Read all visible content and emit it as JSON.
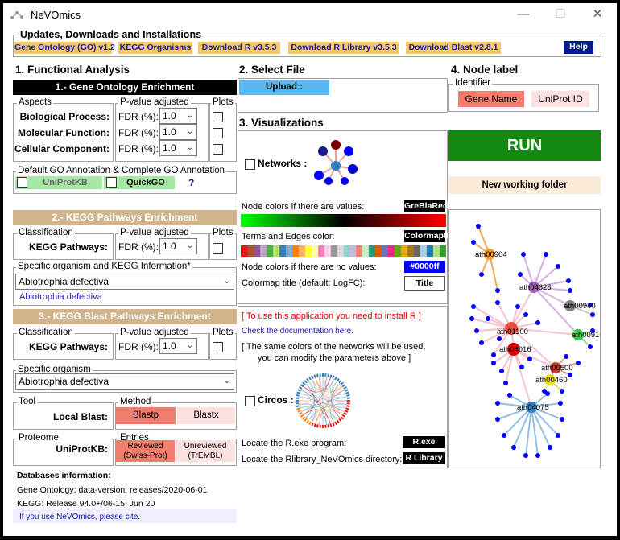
{
  "titlebar": {
    "title": "NeVOmics",
    "icons": [
      "app-logo-icon",
      "minimize-icon",
      "maximize-icon",
      "close-icon"
    ]
  },
  "updates": {
    "legend": "Updates, Downloads and Installations",
    "buttons": [
      "Gene Ontology (GO) v1.2",
      "KEGG Organisms",
      "Download R v3.5.3",
      "Download R Library v3.5.3",
      "Download Blast v2.8.1"
    ],
    "help": "Help"
  },
  "functional": {
    "title": "1. Functional Analysis",
    "go": {
      "bar": "1.-  Gene Ontology Enrichment",
      "aspects_legend": "Aspects",
      "pvalue_legend": "P-value adjusted",
      "plots_legend": "Plots",
      "rows": [
        {
          "label": "Biological Process:",
          "fdr": "FDR (%):",
          "value": "1.0"
        },
        {
          "label": "Molecular Function:",
          "fdr": "FDR (%):",
          "value": "1.0"
        },
        {
          "label": "Cellular Component:",
          "fdr": "FDR (%):",
          "value": "1.0"
        }
      ],
      "default_legend": "Default GO Annotation & Complete GO Annotation",
      "uniprotkb": "UniProtKB",
      "quickgo": "QuickGO",
      "help_q": "?"
    },
    "kegg": {
      "bar": "2.-  KEGG Pathways Enrichment",
      "class_legend": "Classification",
      "pvalue_legend": "P-value adjusted",
      "plots_legend": "Plots",
      "label": "KEGG Pathways:",
      "fdr": "FDR (%):",
      "value": "1.0",
      "org_legend": "Specific organism and KEGG Information*",
      "organism": "Abiotrophia defectiva",
      "org_link": "Abiotrophia defectiva"
    },
    "blast": {
      "bar": "3.-  KEGG Blast Pathways Enrichment",
      "class_legend": "Classification",
      "pvalue_legend": "P-value adjusted",
      "plots_legend": "Plots",
      "label": "KEGG Pathways:",
      "fdr": "FDR (%):",
      "value": "1.0",
      "org_legend": "Specific organism",
      "organism": "Abiotrophia defectiva",
      "tool_legend": "Tool",
      "tool_label": "Local Blast:",
      "method_legend": "Method",
      "blastp": "Blastp",
      "blastx": "Blastx",
      "proteome_legend": "Proteome",
      "proteome_label": "UniProtKB:",
      "entries_legend": "Entries",
      "reviewed1": "Reviewed",
      "reviewed2": "(Swiss-Prot)",
      "unreviewed1": "Unreviewed",
      "unreviewed2": "(TrEMBL)"
    },
    "db": {
      "title": "Databases information:",
      "go": "Gene Ontology: data-version: releases/2020-06-01",
      "kegg": "KEGG: Release 94.0+/06-15, Jun 20",
      "cite": "If you use NeVOmics, please cite."
    }
  },
  "select": {
    "title": "2. Select File",
    "upload": "Upload :"
  },
  "viz": {
    "title": "3. Visualizations",
    "networks": "Networks :",
    "node_colors_values": "Node colors if there are values:",
    "gbr": "GreBlaRed",
    "terms_edges": "Terms and Edges color:",
    "colormap": "Colormap8",
    "node_colors_none": "Node colors if there are no values:",
    "hex": "#0000ff",
    "colormap_title": "Colormap title (default: LogFC):",
    "title_btn": "Title",
    "install_r": "[ To use this application you need to install R ]",
    "docs": "Check the documentation here.",
    "same_colors1": "[ The same colors of the networks will be used,",
    "same_colors2": "you can modify the parameters above ]",
    "circos": "Circos :",
    "locate_r": "Locate the R.exe program:",
    "rexe": "R.exe",
    "locate_lib": "Locate the Rlibrary_NeVOmics directory:",
    "rlib": "R Library",
    "colors": {
      "green": "#00ff00",
      "red": "#ff0000",
      "blue": "#0000ff"
    }
  },
  "node_label": {
    "title": "4. Node label",
    "legend": "Identifier",
    "gene_name": "Gene Name",
    "uniprot": "UniProt ID"
  },
  "run": "RUN",
  "new_folder": "New working folder",
  "network": {
    "labels": [
      "ath00904",
      "ath04626",
      "ath00940",
      "ath01100",
      "ath00910",
      "ath04016",
      "ath00500",
      "ath00460",
      "ath04075"
    ],
    "hub_colors": [
      "#f39c34",
      "#9b59b6",
      "#808080",
      "#e74c3c",
      "#2ecc40",
      "#e00000",
      "#c0392b",
      "#f1e600",
      "#2f7fc1"
    ]
  }
}
